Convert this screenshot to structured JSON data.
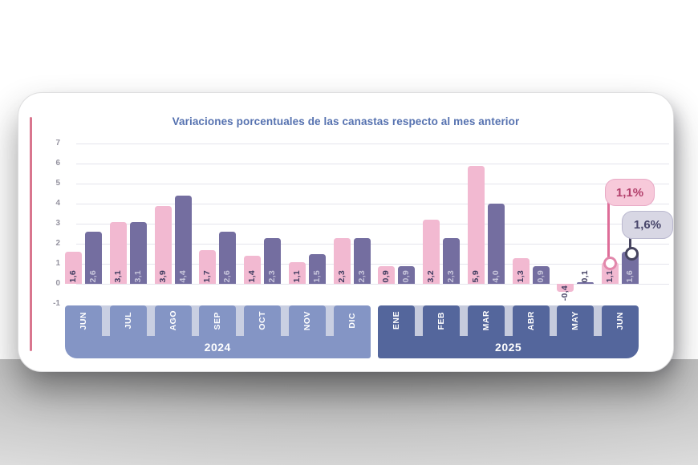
{
  "page": {
    "title": "Variaciones porcentuales de las canastas respecto al mes anterior"
  },
  "colors": {
    "pink_bar": "#f2b9d1",
    "purple_bar": "#746ea0",
    "label_dark": "#3f3c60",
    "label_light": "#c9c7dc",
    "tab_2024": "#8495c5",
    "tab_2025": "#54669c",
    "gap_2024": "#c9cfe2",
    "gap_2025": "#c6cbdd",
    "title_text": "#5672b0",
    "axis_text": "#94929f",
    "gridline": "#e4e4ec",
    "pill_pink_bg": "#f7c9da",
    "pill_pink_text": "#b23f6b",
    "pill_navy_bg": "#d8d7e4",
    "pill_navy_text": "#47456a",
    "connector_pink": "#de6d98",
    "connector_navy": "#46445f",
    "accent_line": "#d9768e"
  },
  "chart_data": {
    "type": "bar",
    "title": "Variaciones porcentuales de las canastas respecto al mes anterior",
    "categories": [
      "JUN",
      "JUL",
      "AGO",
      "SEP",
      "OCT",
      "NOV",
      "DIC",
      "ENE",
      "FEB",
      "MAR",
      "ABR",
      "MAY",
      "JUN"
    ],
    "year_groups": [
      {
        "label": "2024",
        "start": 0,
        "count": 7
      },
      {
        "label": "2025",
        "start": 7,
        "count": 6
      }
    ],
    "series": [
      {
        "name": "serie-rosa",
        "values": [
          1.6,
          3.1,
          3.9,
          1.7,
          1.4,
          1.1,
          2.3,
          0.9,
          3.2,
          5.9,
          1.3,
          -0.4,
          1.1
        ]
      },
      {
        "name": "serie-violeta",
        "values": [
          2.6,
          3.1,
          4.4,
          2.6,
          2.3,
          1.5,
          2.3,
          0.9,
          2.3,
          4.0,
          0.9,
          0.1,
          1.6
        ]
      }
    ],
    "value_labels": [
      [
        "1,6",
        "3,1",
        "3,9",
        "1,7",
        "1,4",
        "1,1",
        "2,3",
        "0,9",
        "3,2",
        "5,9",
        "1,3",
        "-0,4",
        "1,1"
      ],
      [
        "2,6",
        "3,1",
        "4,4",
        "2,6",
        "2,3",
        "1,5",
        "2,3",
        "0,9",
        "2,3",
        "4,0",
        "0,9",
        "0,1",
        "1,6"
      ]
    ],
    "yticks": [
      "7",
      "6",
      "5",
      "4",
      "3",
      "2",
      "1",
      "0",
      "-1"
    ],
    "ylim": [
      -1,
      7
    ],
    "grid": "horizontal",
    "legend": "none",
    "callouts": [
      {
        "label": "1,1%",
        "series": "serie-rosa"
      },
      {
        "label": "1,6%",
        "series": "serie-violeta"
      }
    ]
  }
}
